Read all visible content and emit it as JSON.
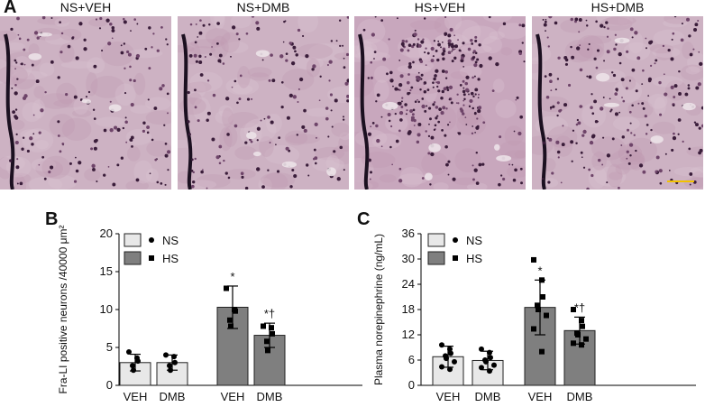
{
  "figure": {
    "panel_a_letter": "A",
    "panel_b_letter": "B",
    "panel_c_letter": "C",
    "micrographs": [
      {
        "title": "NS+VEH"
      },
      {
        "title": "NS+DMB"
      },
      {
        "title": "HS+VEH"
      },
      {
        "title": "HS+DMB"
      }
    ],
    "scale_bar_color": "#f2c200"
  },
  "chart_data": [
    {
      "id": "B",
      "type": "bar",
      "categories": [
        "VEH",
        "DMB",
        "VEH",
        "DMB"
      ],
      "groups": [
        "NS",
        "NS",
        "HS",
        "HS"
      ],
      "values": [
        3.0,
        3.0,
        10.3,
        6.6
      ],
      "errors": [
        1.1,
        1.0,
        2.8,
        1.6
      ],
      "points": [
        [
          4.4,
          3.6,
          3.2,
          2.6,
          2.0
        ],
        [
          4.0,
          3.8,
          3.0,
          2.6,
          2.0
        ],
        [
          12.8,
          10.0,
          9.8,
          8.6,
          7.8
        ],
        [
          7.8,
          7.6,
          6.8,
          5.8,
          4.6
        ]
      ],
      "significance": [
        "",
        "",
        "*",
        "*†"
      ],
      "ylabel": "Fra-LI positive neurons /40000 μm²",
      "ylim": [
        0,
        20
      ],
      "yticks": [
        0,
        5,
        10,
        15,
        20
      ],
      "legend": [
        {
          "name": "NS",
          "color": "#e8e8e8",
          "marker": "circle"
        },
        {
          "name": "HS",
          "color": "#7f7f7f",
          "marker": "square"
        }
      ],
      "legend_position": "top-left"
    },
    {
      "id": "C",
      "type": "bar",
      "categories": [
        "VEH",
        "DMB",
        "VEH",
        "DMB"
      ],
      "groups": [
        "NS",
        "NS",
        "HS",
        "HS"
      ],
      "values": [
        6.8,
        5.9,
        18.5,
        13.0
      ],
      "errors": [
        2.5,
        2.2,
        6.5,
        3.2
      ],
      "points": [
        [
          9.6,
          8.6,
          7.6,
          7.0,
          6.4,
          5.6,
          4.4,
          3.8
        ],
        [
          8.6,
          7.8,
          6.6,
          6.0,
          5.6,
          4.8,
          4.2,
          3.4
        ],
        [
          29.8,
          25.0,
          21.0,
          19.0,
          18.0,
          16.6,
          13.4,
          8.0
        ],
        [
          18.0,
          15.4,
          14.0,
          12.4,
          12.0,
          11.0,
          10.0,
          9.6
        ]
      ],
      "significance": [
        "",
        "",
        "*",
        "*†"
      ],
      "ylabel": "Plasma norepinephrine (ng/mL)",
      "ylim": [
        0,
        36
      ],
      "yticks": [
        0,
        6,
        12,
        18,
        24,
        30,
        36
      ],
      "legend": [
        {
          "name": "NS",
          "color": "#e8e8e8",
          "marker": "circle"
        },
        {
          "name": "HS",
          "color": "#7f7f7f",
          "marker": "square"
        }
      ],
      "legend_position": "top-left"
    }
  ]
}
